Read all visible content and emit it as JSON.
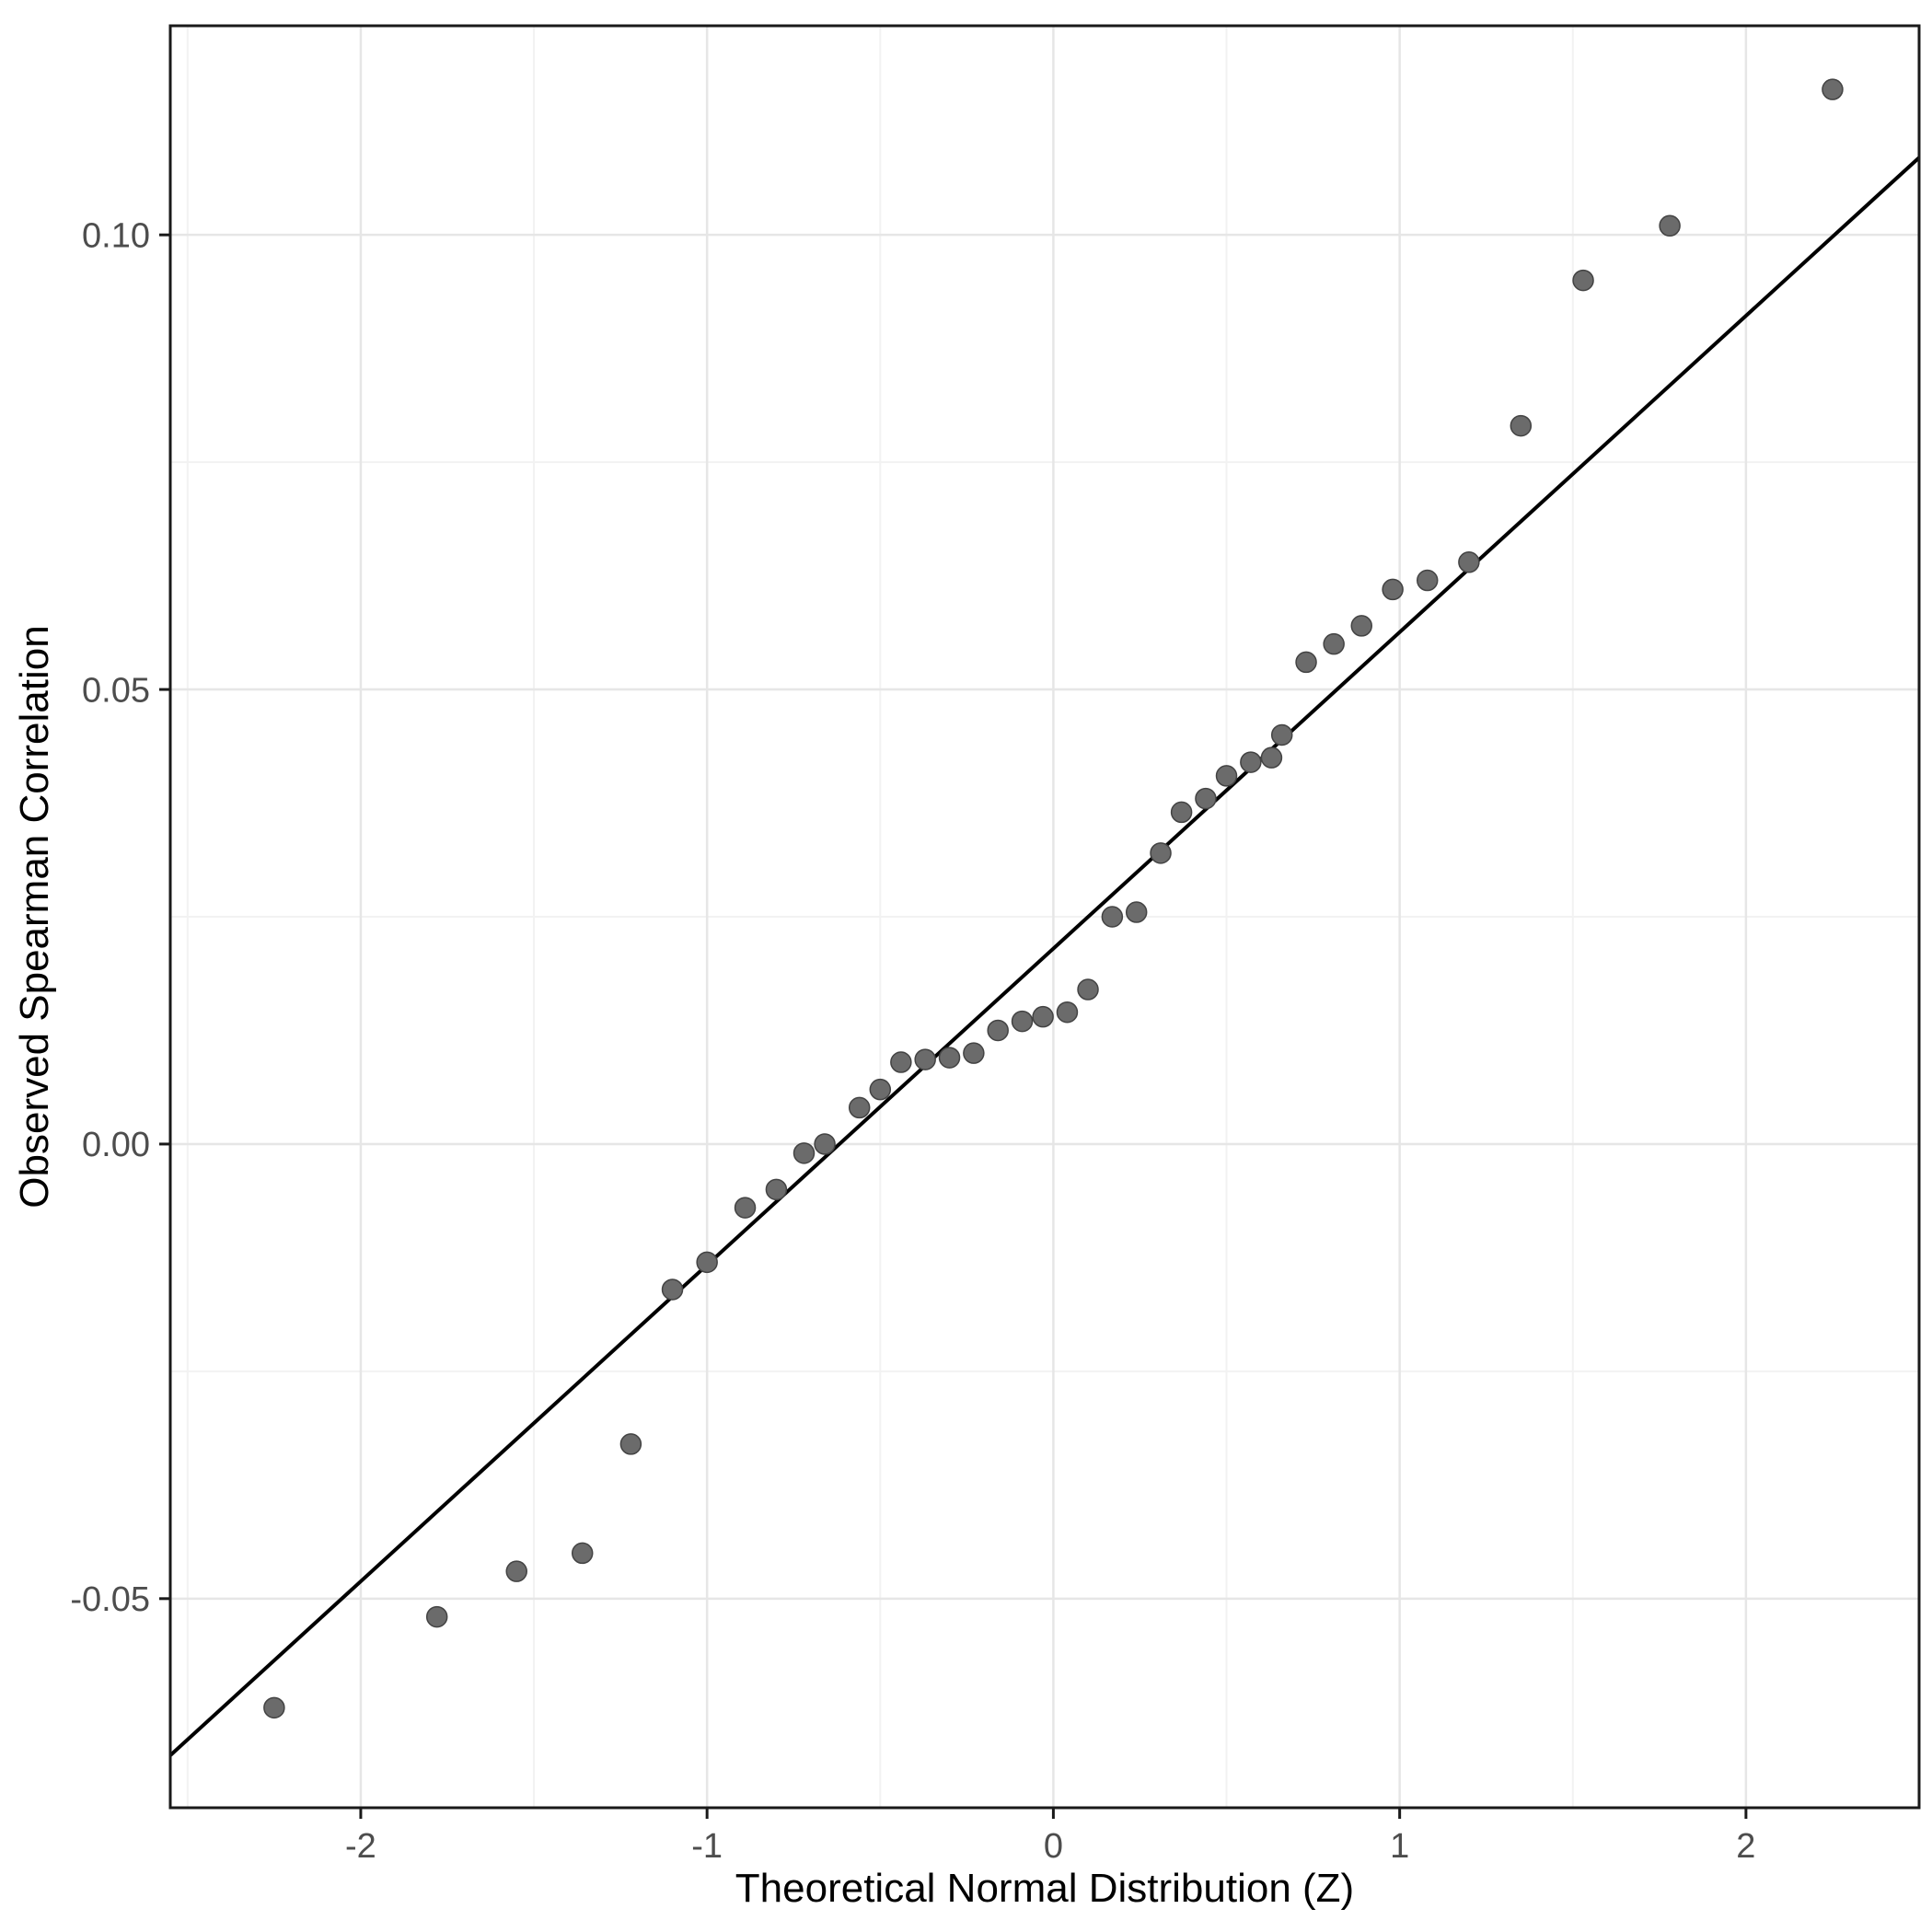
{
  "figure": {
    "background": "#ffffff"
  },
  "chart_data": {
    "type": "scatter",
    "title": "",
    "xlabel": "Theoretical Normal Distribution (Z)",
    "ylabel": "Observed Spearman Correlation",
    "xlim": [
      -2.55,
      2.5
    ],
    "ylim": [
      -0.073,
      0.123
    ],
    "x_ticks": [
      -2,
      -1,
      0,
      1,
      2
    ],
    "x_tick_labels": [
      "-2",
      "-1",
      "0",
      "1",
      "2"
    ],
    "x_minor_ticks": [
      -2.5,
      -1.5,
      -0.5,
      0.5,
      1.5,
      2.5
    ],
    "y_ticks": [
      -0.05,
      0,
      0.05,
      0.1
    ],
    "y_tick_labels": [
      "-0.05",
      "0.00",
      "0.05",
      "0.10"
    ],
    "y_minor_ticks": [
      -0.025,
      0.025,
      0.075
    ],
    "grid": "major+minor",
    "legend": "none",
    "reference_line": {
      "slope": 0.0348,
      "intercept": 0.0215
    },
    "series": [
      {
        "name": "qq-points",
        "points": [
          [
            -2.25,
            -0.062
          ],
          [
            -1.78,
            -0.052
          ],
          [
            -1.55,
            -0.047
          ],
          [
            -1.36,
            -0.045
          ],
          [
            -1.22,
            -0.033
          ],
          [
            -1.1,
            -0.016
          ],
          [
            -1.0,
            -0.013
          ],
          [
            -0.89,
            -0.007
          ],
          [
            -0.8,
            -0.005
          ],
          [
            -0.72,
            -0.001
          ],
          [
            -0.66,
            0.0
          ],
          [
            -0.56,
            0.004
          ],
          [
            -0.5,
            0.006
          ],
          [
            -0.44,
            0.009
          ],
          [
            -0.37,
            0.0093
          ],
          [
            -0.3,
            0.0095
          ],
          [
            -0.23,
            0.01
          ],
          [
            -0.16,
            0.0125
          ],
          [
            -0.09,
            0.0135
          ],
          [
            -0.03,
            0.014
          ],
          [
            0.04,
            0.0145
          ],
          [
            0.1,
            0.017
          ],
          [
            0.17,
            0.025
          ],
          [
            0.24,
            0.0255
          ],
          [
            0.31,
            0.032
          ],
          [
            0.37,
            0.0365
          ],
          [
            0.44,
            0.038
          ],
          [
            0.5,
            0.0405
          ],
          [
            0.57,
            0.042
          ],
          [
            0.63,
            0.0425
          ],
          [
            0.66,
            0.045
          ],
          [
            0.73,
            0.053
          ],
          [
            0.81,
            0.055
          ],
          [
            0.89,
            0.057
          ],
          [
            0.98,
            0.061
          ],
          [
            1.08,
            0.062
          ],
          [
            1.2,
            0.064
          ],
          [
            1.35,
            0.079
          ],
          [
            1.53,
            0.095
          ],
          [
            1.78,
            0.101
          ],
          [
            2.25,
            0.116
          ]
        ]
      }
    ],
    "style": {
      "point_fill": "#6b6b6b",
      "point_stroke": "#434343",
      "line_color": "#000000",
      "grid_major": "#e6e6e6",
      "grid_minor": "#f2f2f2",
      "panel_border": "#1a1a1a",
      "panel_background": "#ffffff",
      "axis_text": "#4d4d4d",
      "axis_title": "#000000",
      "tick_color": "#1a1a1a"
    }
  }
}
